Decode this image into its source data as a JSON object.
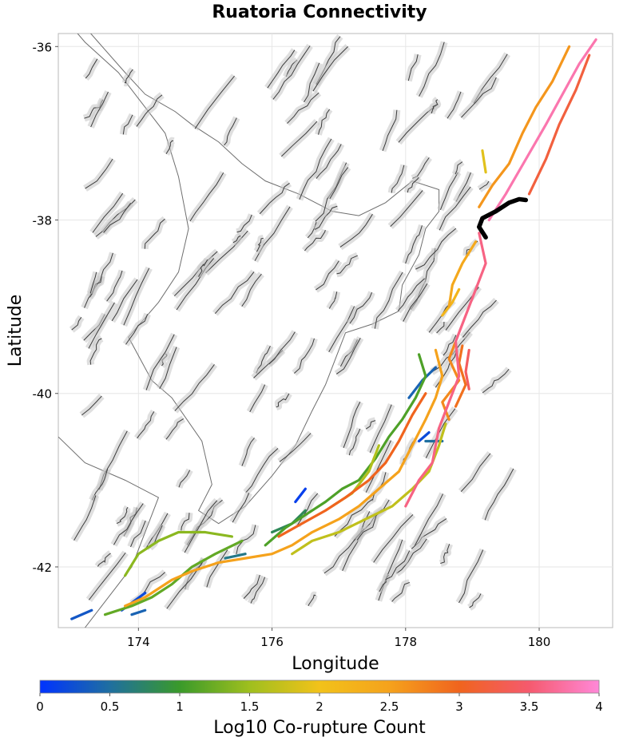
{
  "chart_data": {
    "type": "map",
    "title": "Ruatoria Connectivity",
    "xlabel": "Longitude",
    "ylabel": "Latitude",
    "xlim": [
      172.8,
      181.1
    ],
    "ylim": [
      -42.7,
      -35.85
    ],
    "xticks": [
      174,
      176,
      178,
      180
    ],
    "yticks": [
      -36,
      -38,
      -40,
      -42
    ],
    "xtick_labels": [
      "174",
      "176",
      "178",
      "180"
    ],
    "ytick_labels": [
      "-36",
      "-38",
      "-40",
      "-42"
    ],
    "grid": true,
    "colorbar": {
      "label": "Log10 Co-rupture Count",
      "range": [
        0,
        4
      ],
      "ticks": [
        0,
        0.5,
        1,
        1.5,
        2,
        2.5,
        3,
        3.5,
        4
      ],
      "tick_labels": [
        "0",
        "0.5",
        "1",
        "1.5",
        "2",
        "2.5",
        "3",
        "3.5",
        "4"
      ],
      "colormap": [
        "#0033ff",
        "#1f6fa0",
        "#3a9a2a",
        "#9fbf1e",
        "#f2c21a",
        "#f5a21c",
        "#f0641e",
        "#f55a6e",
        "#ff88d8"
      ]
    },
    "source_fault": {
      "name": "Ruatoria",
      "color": "#000000",
      "trace": [
        [
          179.2,
          -38.2
        ],
        [
          179.1,
          -38.08
        ],
        [
          179.15,
          -37.98
        ],
        [
          179.35,
          -37.9
        ],
        [
          179.55,
          -37.8
        ],
        [
          179.7,
          -37.76
        ],
        [
          179.8,
          -37.77
        ]
      ]
    },
    "connected_faults": [
      {
        "log10": 3.6,
        "trace": [
          [
            179.1,
            -38.15
          ],
          [
            179.2,
            -38.5
          ],
          [
            179.05,
            -38.8
          ],
          [
            178.9,
            -39.1
          ],
          [
            178.75,
            -39.4
          ],
          [
            178.8,
            -39.8
          ],
          [
            178.65,
            -40.1
          ],
          [
            178.5,
            -40.4
          ],
          [
            178.4,
            -40.8
          ],
          [
            178.2,
            -41.0
          ],
          [
            178.0,
            -41.3
          ]
        ]
      },
      {
        "log10": 3.8,
        "trace": [
          [
            179.25,
            -38.0
          ],
          [
            179.5,
            -37.7
          ],
          [
            179.8,
            -37.3
          ],
          [
            180.1,
            -36.9
          ],
          [
            180.35,
            -36.55
          ],
          [
            180.6,
            -36.2
          ],
          [
            180.85,
            -35.92
          ]
        ]
      },
      {
        "log10": 3.2,
        "trace": [
          [
            179.85,
            -37.7
          ],
          [
            180.1,
            -37.3
          ],
          [
            180.3,
            -36.9
          ],
          [
            180.55,
            -36.5
          ],
          [
            180.75,
            -36.1
          ]
        ]
      },
      {
        "log10": 2.6,
        "trace": [
          [
            179.1,
            -37.85
          ],
          [
            179.3,
            -37.6
          ],
          [
            179.55,
            -37.35
          ],
          [
            179.75,
            -37.0
          ],
          [
            179.95,
            -36.7
          ],
          [
            180.2,
            -36.4
          ],
          [
            180.45,
            -36.0
          ]
        ]
      },
      {
        "log10": 2.4,
        "trace": [
          [
            179.05,
            -38.25
          ],
          [
            178.85,
            -38.5
          ],
          [
            178.7,
            -38.75
          ],
          [
            178.65,
            -39.0
          ]
        ]
      },
      {
        "log10": 2.2,
        "trace": [
          [
            178.55,
            -39.1
          ],
          [
            178.7,
            -38.95
          ],
          [
            178.8,
            -38.8
          ]
        ]
      },
      {
        "log10": 1.9,
        "trace": [
          [
            179.15,
            -37.2
          ],
          [
            179.2,
            -37.45
          ]
        ]
      },
      {
        "log10": 2.7,
        "trace": [
          [
            178.75,
            -39.4
          ],
          [
            178.65,
            -39.6
          ],
          [
            178.8,
            -39.85
          ],
          [
            178.55,
            -40.1
          ],
          [
            178.65,
            -40.3
          ]
        ]
      },
      {
        "log10": 2.5,
        "trace": [
          [
            178.45,
            -39.5
          ],
          [
            178.55,
            -39.8
          ],
          [
            178.45,
            -40.05
          ],
          [
            178.3,
            -40.3
          ],
          [
            178.1,
            -40.6
          ],
          [
            177.9,
            -40.9
          ],
          [
            177.6,
            -41.1
          ],
          [
            177.3,
            -41.3
          ],
          [
            177.0,
            -41.45
          ],
          [
            176.6,
            -41.6
          ],
          [
            176.3,
            -41.75
          ],
          [
            176.0,
            -41.85
          ],
          [
            175.6,
            -41.9
          ],
          [
            175.2,
            -41.95
          ],
          [
            174.8,
            -42.05
          ],
          [
            174.5,
            -42.15
          ],
          [
            174.1,
            -42.35
          ],
          [
            173.8,
            -42.45
          ]
        ]
      },
      {
        "log10": 3.0,
        "trace": [
          [
            178.3,
            -40.0
          ],
          [
            178.1,
            -40.25
          ],
          [
            177.9,
            -40.55
          ],
          [
            177.7,
            -40.8
          ],
          [
            177.45,
            -41.0
          ],
          [
            177.1,
            -41.2
          ],
          [
            176.8,
            -41.35
          ],
          [
            176.45,
            -41.5
          ],
          [
            176.1,
            -41.65
          ]
        ]
      },
      {
        "log10": 1.7,
        "trace": [
          [
            178.6,
            -40.35
          ],
          [
            178.5,
            -40.6
          ],
          [
            178.35,
            -40.9
          ],
          [
            178.1,
            -41.1
          ],
          [
            177.8,
            -41.3
          ],
          [
            177.4,
            -41.45
          ],
          [
            177.0,
            -41.6
          ],
          [
            176.6,
            -41.7
          ],
          [
            176.3,
            -41.85
          ]
        ]
      },
      {
        "log10": 1.1,
        "trace": [
          [
            178.2,
            -39.55
          ],
          [
            178.3,
            -39.8
          ],
          [
            178.15,
            -40.05
          ],
          [
            177.95,
            -40.3
          ],
          [
            177.75,
            -40.5
          ],
          [
            177.55,
            -40.75
          ],
          [
            177.3,
            -41.0
          ],
          [
            177.05,
            -41.1
          ],
          [
            176.8,
            -41.25
          ],
          [
            176.5,
            -41.4
          ],
          [
            176.2,
            -41.55
          ],
          [
            175.9,
            -41.75
          ]
        ]
      },
      {
        "log10": 1.6,
        "trace": [
          [
            177.6,
            -40.6
          ],
          [
            177.45,
            -40.9
          ],
          [
            177.2,
            -41.15
          ],
          [
            176.9,
            -41.3
          ]
        ]
      },
      {
        "log10": 1.2,
        "trace": [
          [
            175.55,
            -41.7
          ],
          [
            175.15,
            -41.85
          ],
          [
            174.8,
            -42.0
          ],
          [
            174.5,
            -42.2
          ],
          [
            174.2,
            -42.35
          ],
          [
            173.9,
            -42.45
          ],
          [
            173.5,
            -42.55
          ]
        ]
      },
      {
        "log10": 1.4,
        "trace": [
          [
            175.4,
            -41.65
          ],
          [
            175.0,
            -41.6
          ],
          [
            174.6,
            -41.6
          ],
          [
            174.3,
            -41.7
          ],
          [
            174.0,
            -41.85
          ],
          [
            173.8,
            -42.1
          ]
        ]
      },
      {
        "log10": 0.4,
        "trace": [
          [
            178.05,
            -40.05
          ],
          [
            178.25,
            -39.85
          ],
          [
            178.45,
            -39.7
          ]
        ]
      },
      {
        "log10": 0.2,
        "trace": [
          [
            178.2,
            -40.55
          ],
          [
            178.35,
            -40.45
          ]
        ]
      },
      {
        "log10": 0.5,
        "trace": [
          [
            178.3,
            -40.55
          ],
          [
            178.55,
            -40.55
          ]
        ]
      },
      {
        "log10": 0.1,
        "trace": [
          [
            176.35,
            -41.25
          ],
          [
            176.5,
            -41.1
          ]
        ]
      },
      {
        "log10": 0.8,
        "trace": [
          [
            176.5,
            -41.35
          ],
          [
            176.3,
            -41.5
          ],
          [
            176.0,
            -41.6
          ]
        ]
      },
      {
        "log10": 0.2,
        "trace": [
          [
            173.75,
            -42.5
          ],
          [
            174.1,
            -42.3
          ]
        ]
      },
      {
        "log10": 0.3,
        "trace": [
          [
            173.0,
            -42.6
          ],
          [
            173.3,
            -42.5
          ]
        ]
      },
      {
        "log10": 0.4,
        "trace": [
          [
            173.9,
            -42.55
          ],
          [
            174.1,
            -42.5
          ]
        ]
      },
      {
        "log10": 0.6,
        "trace": [
          [
            175.6,
            -41.85
          ],
          [
            175.3,
            -41.9
          ]
        ]
      },
      {
        "log10": 2.9,
        "trace": [
          [
            178.85,
            -39.45
          ],
          [
            178.8,
            -39.65
          ],
          [
            178.9,
            -39.9
          ],
          [
            178.75,
            -40.15
          ]
        ]
      },
      {
        "log10": 3.4,
        "trace": [
          [
            178.95,
            -39.5
          ],
          [
            178.9,
            -39.75
          ],
          [
            178.95,
            -39.95
          ]
        ]
      }
    ]
  }
}
